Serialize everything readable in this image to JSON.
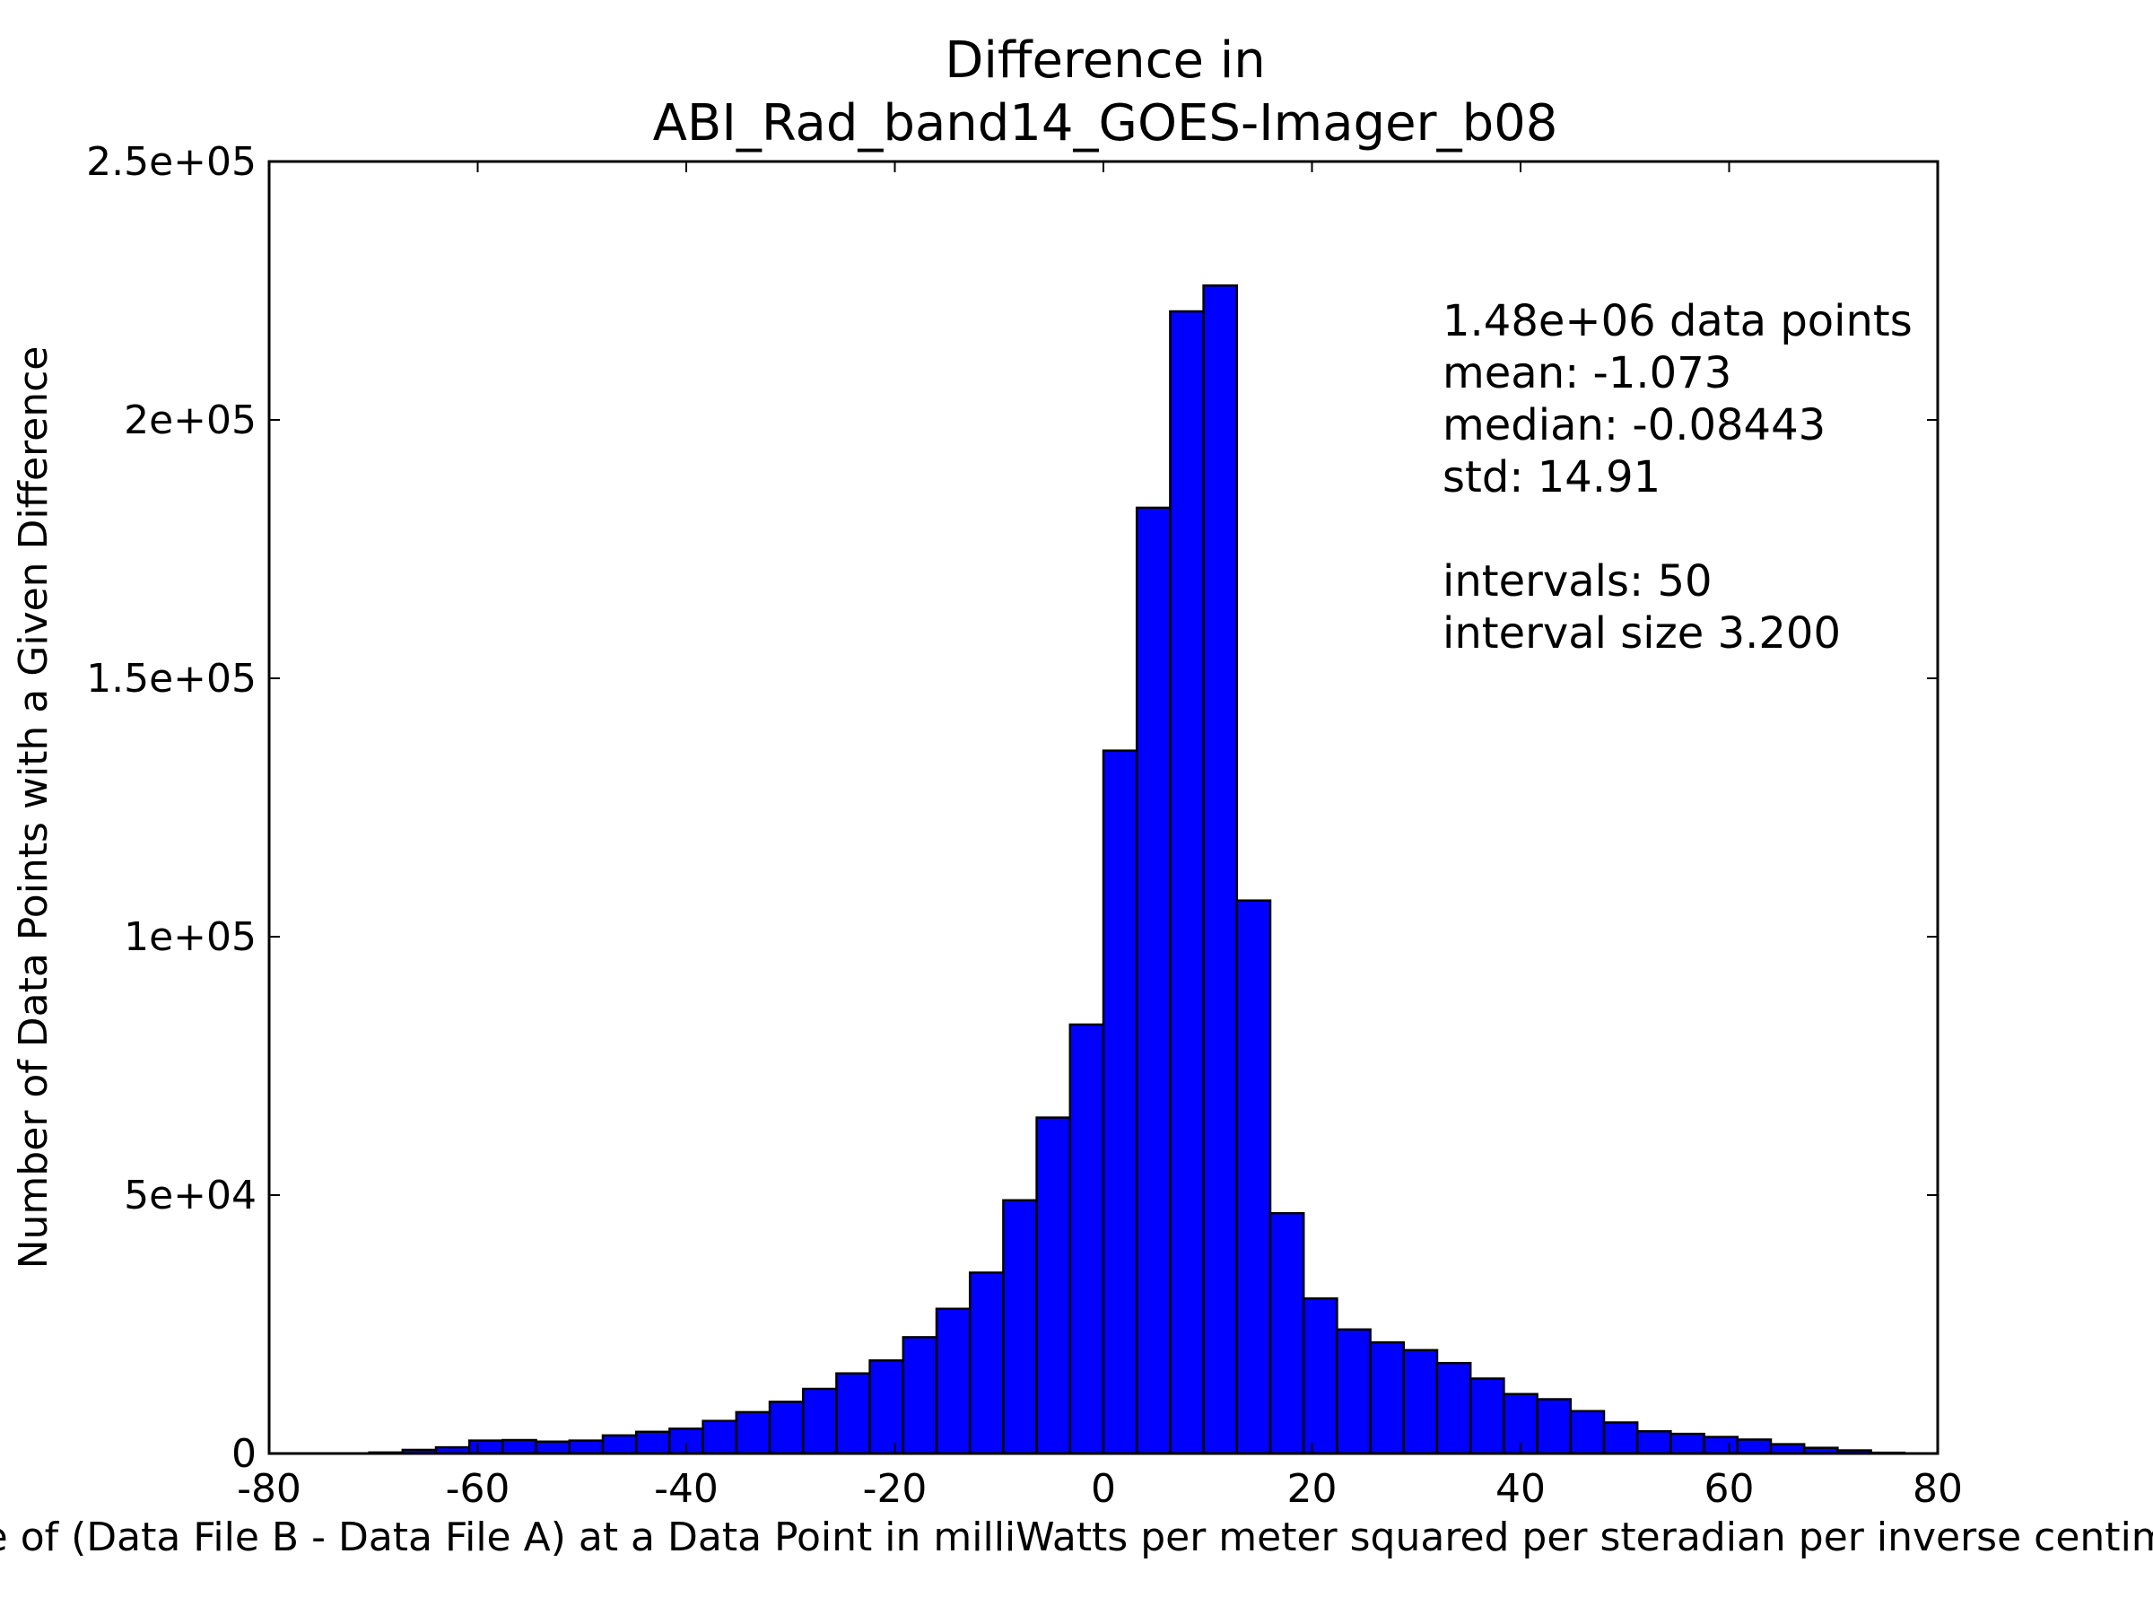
{
  "chart_data": {
    "type": "bar",
    "title": [
      "Difference in",
      "ABI_Rad_band14_GOES-Imager_b08"
    ],
    "xlabel": "Value of (Data File B - Data File A) at a Data Point in milliWatts per meter squared per steradian per inverse centimeter",
    "ylabel": "Number of Data Points with a Given Difference",
    "xlim": [
      -80,
      80
    ],
    "ylim": [
      0,
      250000
    ],
    "x_ticks": [
      -80,
      -60,
      -40,
      -20,
      0,
      20,
      40,
      60,
      80
    ],
    "x_tick_labels": [
      "-80",
      "-60",
      "-40",
      "-20",
      "0",
      "20",
      "40",
      "60",
      "80"
    ],
    "y_ticks": [
      0,
      50000,
      100000,
      150000,
      200000,
      250000
    ],
    "y_tick_labels": [
      "0",
      "5e+04",
      "1e+05",
      "1.5e+05",
      "2e+05",
      "2.5e+05"
    ],
    "bar_color": "#0000ff",
    "edge_color": "#000000",
    "bin_start": -80,
    "bin_width": 3.2,
    "values": [
      0,
      0,
      0,
      200,
      700,
      1200,
      2500,
      2600,
      2300,
      2500,
      3500,
      4200,
      4800,
      6300,
      8000,
      10000,
      12500,
      15500,
      18000,
      22500,
      28000,
      35000,
      49000,
      65000,
      83000,
      136000,
      183000,
      221000,
      226000,
      107000,
      46500,
      30000,
      24000,
      21500,
      20000,
      17500,
      14500,
      11500,
      10500,
      8200,
      6000,
      4300,
      3800,
      3200,
      2700,
      1800,
      1100,
      600,
      150,
      0
    ],
    "stats": [
      "1.48e+06 data points",
      "mean: -1.073",
      "median: -0.08443",
      "std: 14.91",
      "",
      "intervals: 50",
      "interval size 3.200"
    ],
    "grid": false,
    "legend": "none"
  }
}
